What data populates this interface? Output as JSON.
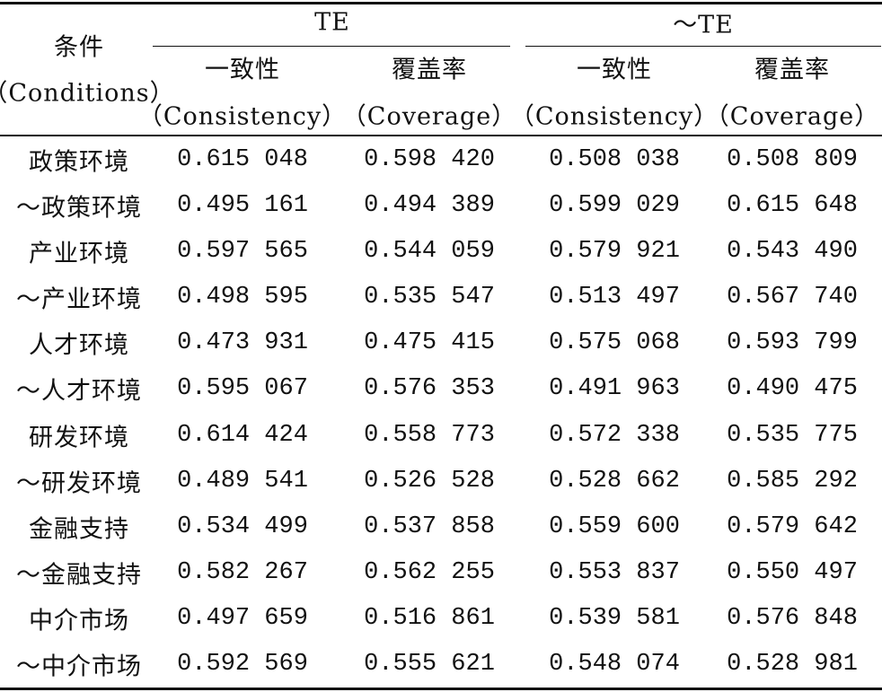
{
  "table": {
    "header": {
      "condition": "条件",
      "condition_en": "（Conditions）",
      "groups": [
        {
          "label": "TE",
          "columns": [
            {
              "label": "一致性",
              "label_en": "（Consistency）"
            },
            {
              "label": "覆盖率",
              "label_en": "（Coverage）"
            }
          ]
        },
        {
          "label": "～TE",
          "columns": [
            {
              "label": "一致性",
              "label_en": "（Consistency）"
            },
            {
              "label": "覆盖率",
              "label_en": "（Coverage）"
            }
          ]
        }
      ]
    },
    "rows": [
      [
        "政策环境",
        "0.615 048",
        "0.598 420",
        "0.508 038",
        "0.508 809"
      ],
      [
        "～政策环境",
        "0.495 161",
        "0.494 389",
        "0.599 029",
        "0.615 648"
      ],
      [
        "产业环境",
        "0.597 565",
        "0.544 059",
        "0.579 921",
        "0.543 490"
      ],
      [
        "～产业环境",
        "0.498 595",
        "0.535 547",
        "0.513 497",
        "0.567 740"
      ],
      [
        "人才环境",
        "0.473 931",
        "0.475 415",
        "0.575 068",
        "0.593 799"
      ],
      [
        "～人才环境",
        "0.595 067",
        "0.576 353",
        "0.491 963",
        "0.490 475"
      ],
      [
        "研发环境",
        "0.614 424",
        "0.558 773",
        "0.572 338",
        "0.535 775"
      ],
      [
        "～研发环境",
        "0.489 541",
        "0.526 528",
        "0.528 662",
        "0.585 292"
      ],
      [
        "金融支持",
        "0.534 499",
        "0.537 858",
        "0.559 600",
        "0.579 642"
      ],
      [
        "～金融支持",
        "0.582 267",
        "0.562 255",
        "0.553 837",
        "0.550 497"
      ],
      [
        "中介市场",
        "0.497 659",
        "0.516 861",
        "0.539 581",
        "0.576 848"
      ],
      [
        "～中介市场",
        "0.592 569",
        "0.555 621",
        "0.548 074",
        "0.528 981"
      ]
    ]
  }
}
